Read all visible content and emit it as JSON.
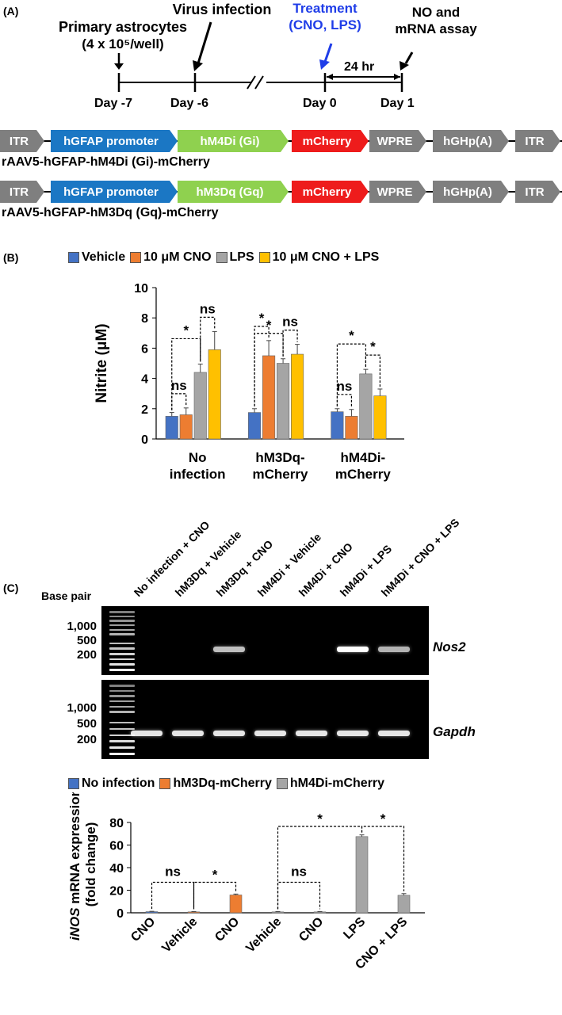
{
  "panel_a": {
    "label": "(A)",
    "events": [
      {
        "label": "Primary astrocytes\n(4 x 10⁵/well)"
      },
      {
        "label": "Virus infection"
      },
      {
        "label": "Treatment\n(CNO, LPS)",
        "color": "#1f3de8"
      },
      {
        "label": "NO and\nmRNA assay"
      }
    ],
    "days": [
      "Day -7",
      "Day -6",
      "Day 0",
      "Day 1"
    ],
    "interval": "24 hr",
    "break_mark": "//",
    "constructs": [
      {
        "name": "rAAV5-hGFAP-hM4Di (Gi)-mCherry",
        "elements": [
          {
            "label": "ITR",
            "color": "#7f7f7f"
          },
          {
            "label": "hGFAP promoter",
            "color": "#1b77c4"
          },
          {
            "label": "hM4Di (Gi)",
            "color": "#8fd14f"
          },
          {
            "label": "mCherry",
            "color": "#ee1c1c"
          },
          {
            "label": "WPRE",
            "color": "#7f7f7f"
          },
          {
            "label": "hGHp(A)",
            "color": "#7f7f7f"
          },
          {
            "label": "ITR",
            "color": "#7f7f7f"
          }
        ]
      },
      {
        "name": "rAAV5-hGFAP-hM3Dq (Gq)-mCherry",
        "elements": [
          {
            "label": "ITR",
            "color": "#7f7f7f"
          },
          {
            "label": "hGFAP promoter",
            "color": "#1b77c4"
          },
          {
            "label": "hM3Dq (Gq)",
            "color": "#8fd14f"
          },
          {
            "label": "mCherry",
            "color": "#ee1c1c"
          },
          {
            "label": "WPRE",
            "color": "#7f7f7f"
          },
          {
            "label": "hGHp(A)",
            "color": "#7f7f7f"
          },
          {
            "label": "ITR",
            "color": "#7f7f7f"
          }
        ]
      }
    ]
  },
  "panel_b": {
    "label": "(B)"
  },
  "panel_c": {
    "label": "(C)",
    "base_pair_label": "Base pair",
    "lanes": [
      "No infection + CNO",
      "hM3Dq + Vehicle",
      "hM3Dq + CNO",
      "hM4Di + Vehicle",
      "hM4Di + CNO",
      "hM4Di + LPS",
      "hM4Di + CNO + LPS"
    ],
    "gels": [
      {
        "gene": "Nos2",
        "markers": [
          "1,000",
          "500",
          "200"
        ],
        "band_intensity": [
          0,
          0,
          0.75,
          0,
          0,
          1.0,
          0.7
        ]
      },
      {
        "gene": "Gapdh",
        "markers": [
          "1,000",
          "500",
          "200"
        ],
        "band_intensity": [
          0.9,
          0.9,
          0.9,
          0.9,
          0.9,
          0.9,
          0.9
        ]
      }
    ]
  },
  "chart_data": [
    {
      "type": "bar",
      "legend_position": "top",
      "title": "",
      "xlabel": "",
      "ylabel": "Nitrite (μM)",
      "ylim": [
        0,
        10
      ],
      "yticks": [
        0,
        2,
        4,
        6,
        8,
        10
      ],
      "categories": [
        "No\ninfection",
        "hM3Dq-\nmCherry",
        "hM4Di-\nmCherry"
      ],
      "series": [
        {
          "name": "Vehicle",
          "color": "#4472c4",
          "values": [
            1.5,
            1.75,
            1.8
          ],
          "errors": [
            0.25,
            0.25,
            0.2
          ]
        },
        {
          "name": "10 μM CNO",
          "color": "#ed7d31",
          "values": [
            1.6,
            5.5,
            1.5
          ],
          "errors": [
            0.45,
            1.0,
            0.45
          ]
        },
        {
          "name": "LPS",
          "color": "#a5a5a5",
          "values": [
            4.4,
            5.0,
            4.3
          ],
          "errors": [
            0.55,
            0.3,
            0.3
          ]
        },
        {
          "name": "10 μM CNO + LPS",
          "color": "#ffc000",
          "values": [
            5.9,
            5.6,
            2.85
          ],
          "errors": [
            1.2,
            0.65,
            0.45
          ]
        }
      ],
      "significance": [
        {
          "group": 0,
          "from": 0,
          "to": 1,
          "label": "ns"
        },
        {
          "group": 0,
          "from": 0,
          "to": 2,
          "label": "*"
        },
        {
          "group": 0,
          "from": 2,
          "to": 3,
          "label": "ns"
        },
        {
          "group": 1,
          "from": 0,
          "to": 1,
          "label": "*"
        },
        {
          "group": 1,
          "from": 0,
          "to": 2,
          "label": "*"
        },
        {
          "group": 1,
          "from": 2,
          "to": 3,
          "label": "ns"
        },
        {
          "group": 2,
          "from": 0,
          "to": 1,
          "label": "ns"
        },
        {
          "group": 2,
          "from": 0,
          "to": 2,
          "label": "*"
        },
        {
          "group": 2,
          "from": 2,
          "to": 3,
          "label": "*"
        }
      ]
    },
    {
      "type": "bar",
      "legend_position": "top",
      "title": "",
      "xlabel": "",
      "ylabel_italic": "iNOS",
      "ylabel": "mRNA expression",
      "ylabel2": "(fold change)",
      "ylim": [
        0,
        80
      ],
      "yticks": [
        0,
        20,
        40,
        60,
        80
      ],
      "legend": [
        {
          "name": "No infection",
          "color": "#4472c4"
        },
        {
          "name": "hM3Dq-mCherry",
          "color": "#ed7d31"
        },
        {
          "name": "hM4Di-mCherry",
          "color": "#a5a5a5"
        }
      ],
      "categories": [
        "CNO",
        "Vehicle",
        "CNO",
        "Vehicle",
        "CNO",
        "LPS",
        "CNO + LPS"
      ],
      "bar_series": [
        0,
        1,
        1,
        2,
        2,
        2,
        2
      ],
      "values": [
        1.0,
        0.8,
        15.8,
        0.8,
        0.8,
        67.5,
        15.5
      ],
      "errors": [
        0.3,
        0.3,
        0.8,
        0.3,
        0.3,
        1.5,
        1.5
      ],
      "significance": [
        {
          "from": 0,
          "to": 1,
          "label": "ns"
        },
        {
          "from": 1,
          "to": 2,
          "label": "*"
        },
        {
          "from": 3,
          "to": 4,
          "label": "ns"
        },
        {
          "from": 3,
          "to": 5,
          "label": "*"
        },
        {
          "from": 5,
          "to": 6,
          "label": "*"
        }
      ]
    }
  ]
}
